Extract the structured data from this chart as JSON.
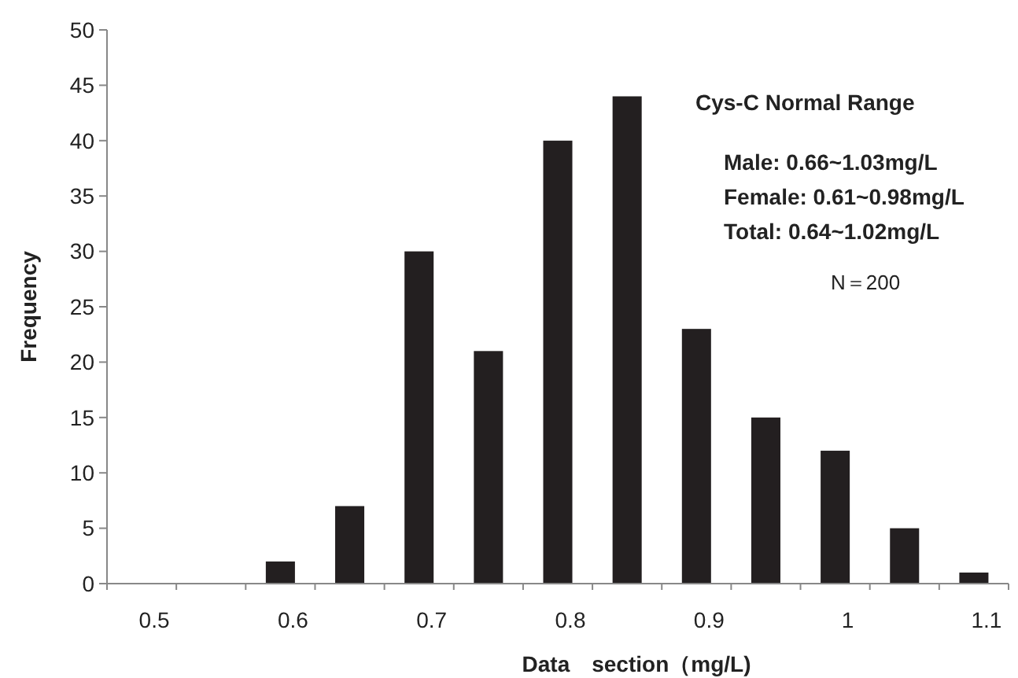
{
  "chart_data": {
    "type": "bar",
    "xlabel": "Data　section（mg/L)",
    "ylabel": "Frequency",
    "categories": [
      "0.5",
      null,
      "0.6",
      null,
      "0.7",
      null,
      "0.8",
      null,
      "0.9",
      null,
      "1",
      null,
      "1.1"
    ],
    "values": [
      0,
      0,
      2,
      7,
      30,
      21,
      40,
      44,
      23,
      15,
      12,
      5,
      1
    ],
    "color": "#231f20",
    "ylim": [
      0,
      50
    ],
    "yticks": [
      0,
      5,
      10,
      15,
      20,
      25,
      30,
      35,
      40,
      45,
      50
    ],
    "grid": false,
    "annotations": [
      "Cys-C Normal Range",
      "Male: 0.66~1.03mg/L",
      "Female: 0.61~0.98mg/L",
      "Total: 0.64~1.02mg/L",
      "N＝200"
    ]
  }
}
